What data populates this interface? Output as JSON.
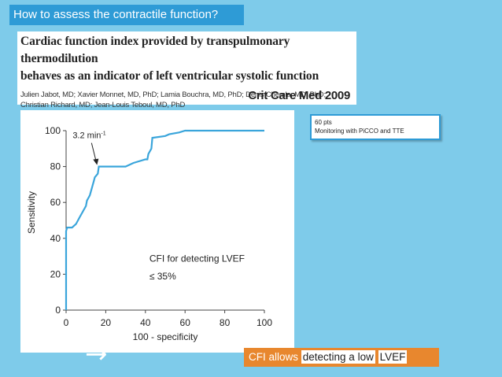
{
  "slide": {
    "title": "How to assess the contractile function?",
    "colors": {
      "background": "#7ecbea",
      "title_bar": "#2e9bd6",
      "conclusion_bg": "#e8872e",
      "curve": "#3aa5db"
    }
  },
  "citation": {
    "title_line1": "Cardiac function index provided by transpulmonary thermodilution",
    "title_line2": "behaves as an indicator of left ventricular systolic function",
    "authors_line1": "Julien Jabot, MD; Xavier Monnet, MD, PhD; Lamia Bouchra, MD, PhD; Denis Chemla, MD, PhD;",
    "authors_line2": "Christian Richard, MD; Jean-Louis Teboul, MD, PhD",
    "journal": "Crit Care Med 2009"
  },
  "note": {
    "line1": "60 pts",
    "line2": "Monitoring with PiCCO and TTE"
  },
  "chart_data": {
    "type": "line",
    "xlabel": "100 - specificity",
    "ylabel": "Sensitivity",
    "xlim": [
      0,
      100
    ],
    "ylim": [
      0,
      100
    ],
    "x_ticks": [
      "0",
      "20",
      "40",
      "60",
      "80",
      "100"
    ],
    "y_ticks": [
      "0",
      "20",
      "40",
      "60",
      "80",
      "100"
    ],
    "x": [
      0,
      0,
      0.5,
      3,
      5,
      7,
      10,
      10.5,
      12,
      14,
      14.5,
      16,
      16.5,
      30,
      34,
      40,
      41,
      41.5,
      43,
      43.5,
      50,
      52,
      57,
      60,
      100
    ],
    "y": [
      0,
      44,
      46,
      46,
      48,
      52,
      58,
      61,
      64,
      72,
      74,
      76,
      80,
      80,
      82,
      84,
      84,
      87,
      90,
      96,
      97,
      98,
      99,
      100,
      100
    ],
    "annotations": {
      "cutoff_main": "3.2 min",
      "cutoff_sup": "-1",
      "cutoff_point": [
        16,
        80
      ],
      "label_line1": "CFI for detecting LVEF",
      "label_line2": "≤ 35%"
    }
  },
  "conclusion": {
    "part1": "CFI allows ",
    "part2": "detecting a low",
    "part3": " ",
    "part4": "LVEF"
  },
  "arrow": {
    "glyph": "→",
    "icon": "arrow-right-icon"
  }
}
